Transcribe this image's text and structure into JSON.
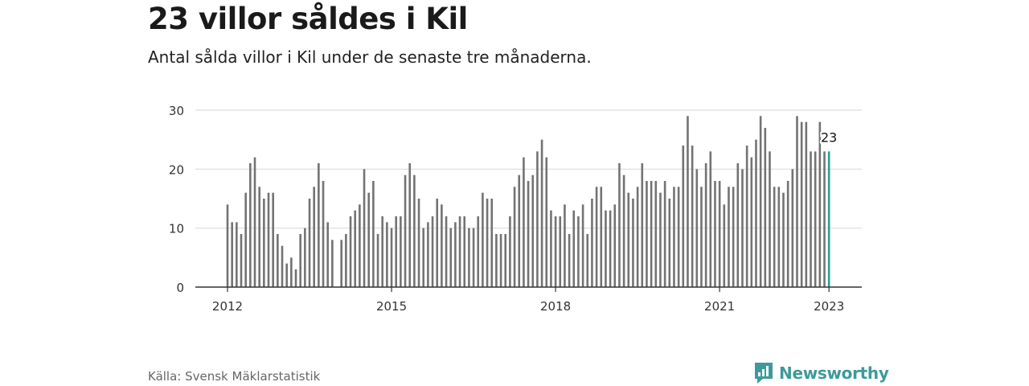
{
  "header": {
    "title": "23 villor såldes i Kil",
    "subtitle": "Antal sålda villor i Kil under de senaste tre månaderna."
  },
  "footer": {
    "source": "Källa: Svensk Mäklarstatistik",
    "brand": "Newsworthy"
  },
  "colors": {
    "bar": "#737373",
    "highlight": "#2a9d94",
    "grid": "#dddddd",
    "axis": "#333333",
    "brand": "#3d9a9a"
  },
  "chart_data": {
    "type": "bar",
    "start_month": "2012-01",
    "x_ticks": [
      "2012",
      "2015",
      "2018",
      "2021",
      "2023"
    ],
    "y_ticks": [
      0,
      10,
      20,
      30
    ],
    "ylim": [
      0,
      30
    ],
    "grid": true,
    "highlight_last": true,
    "last_label": "23",
    "values": [
      14,
      11,
      11,
      9,
      16,
      21,
      22,
      17,
      15,
      16,
      16,
      9,
      7,
      4,
      5,
      3,
      9,
      10,
      15,
      17,
      21,
      18,
      11,
      8,
      null,
      8,
      9,
      12,
      13,
      14,
      20,
      16,
      18,
      9,
      12,
      11,
      10,
      12,
      12,
      19,
      21,
      19,
      15,
      10,
      11,
      12,
      15,
      14,
      12,
      10,
      11,
      12,
      12,
      10,
      10,
      12,
      16,
      15,
      15,
      9,
      9,
      9,
      12,
      17,
      19,
      22,
      18,
      19,
      23,
      25,
      22,
      13,
      12,
      12,
      14,
      9,
      13,
      12,
      14,
      9,
      15,
      17,
      17,
      13,
      13,
      14,
      21,
      19,
      16,
      15,
      17,
      21,
      18,
      18,
      18,
      16,
      18,
      15,
      17,
      17,
      24,
      29,
      24,
      20,
      17,
      21,
      23,
      18,
      18,
      14,
      17,
      17,
      21,
      20,
      24,
      22,
      25,
      29,
      27,
      23,
      17,
      17,
      16,
      18,
      20,
      29,
      28,
      28,
      23,
      23,
      28,
      23,
      23
    ]
  }
}
